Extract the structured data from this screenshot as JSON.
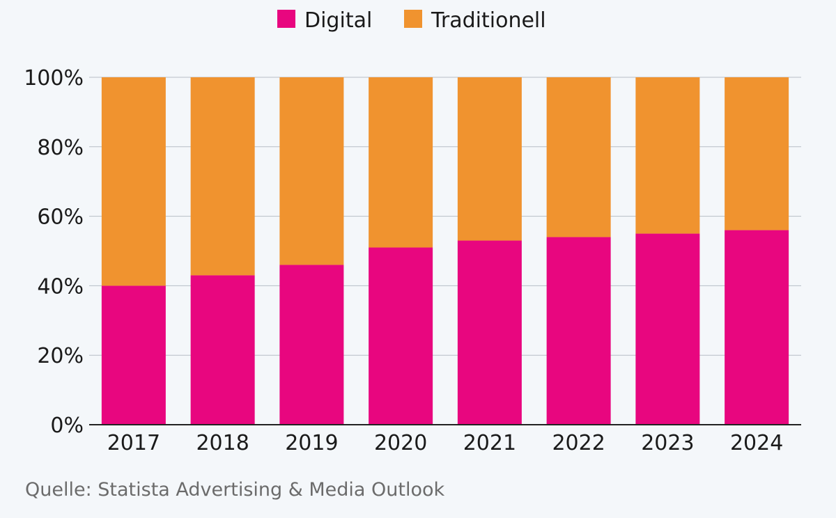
{
  "chart_data": {
    "type": "bar",
    "stacked": true,
    "categories": [
      "2017",
      "2018",
      "2019",
      "2020",
      "2021",
      "2022",
      "2023",
      "2024"
    ],
    "series": [
      {
        "name": "Digital",
        "color": "#e8067f",
        "values": [
          40,
          43,
          46,
          51,
          53,
          54,
          55,
          56
        ]
      },
      {
        "name": "Traditionell",
        "color": "#f0932f",
        "values": [
          60,
          57,
          54,
          49,
          47,
          46,
          45,
          44
        ]
      }
    ],
    "title": "",
    "xlabel": "",
    "ylabel": "",
    "ylim": [
      0,
      100
    ],
    "y_ticks": [
      0,
      20,
      40,
      60,
      80,
      100
    ],
    "y_tick_suffix": "%",
    "grid": true,
    "legend_position": "top-center"
  },
  "source": "Quelle: Statista Advertising & Media Outlook"
}
